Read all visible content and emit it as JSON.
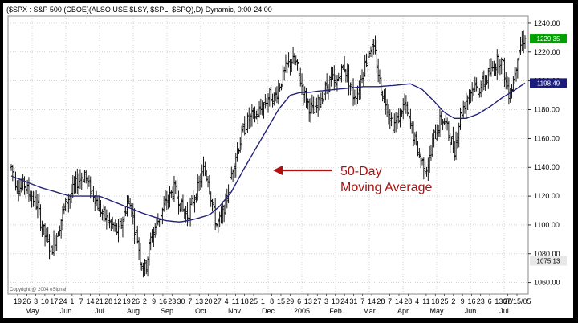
{
  "chart_data": {
    "type": "ohlc_bar",
    "header": "($SPX : S&P 500 (CBOE)(ALSO USE $LSY, $SPL, $SPQ),D) Dynamic, 0:00-24:00",
    "copyright": "Copyright @ 2004 eSignal",
    "ylim": [
      1052,
      1245
    ],
    "y_ticks": [
      1060,
      1080,
      1100,
      1120,
      1140,
      1160,
      1180,
      1200,
      1220,
      1240
    ],
    "tagged_values": [
      {
        "label": "1229.35",
        "value": 1229.35,
        "color": "#00a000",
        "text_color": "#ffffff"
      },
      {
        "label": "1198.49",
        "value": 1198.49,
        "color": "#1a1a7a",
        "text_color": "#ffffff"
      },
      {
        "label": "1075.13",
        "value": 1075.13,
        "color": "#e8e8e8",
        "text_color": "#000000"
      }
    ],
    "date_labels": [
      "19",
      "26",
      "3",
      "10",
      "17",
      "24",
      "1",
      "7",
      "14",
      "21",
      "28",
      "12",
      "19",
      "26",
      "2",
      "9",
      "16",
      "23",
      "30",
      "7",
      "13",
      "20",
      "27",
      "4",
      "11",
      "18",
      "25",
      "1",
      "8",
      "15",
      "29",
      "6",
      "13",
      "27",
      "3",
      "10",
      "24",
      "31",
      "7",
      "14",
      "28",
      "7",
      "14",
      "28",
      "4",
      "11",
      "18",
      "25",
      "2",
      "9",
      "16",
      "23",
      "6",
      "13",
      "20",
      "07/15/05"
    ],
    "month_labels": [
      "May",
      "Jun",
      "Jul",
      "Aug",
      "Sep",
      "Oct",
      "Nov",
      "Dec",
      "2005",
      "Feb",
      "Mar",
      "Apr",
      "May",
      "Jun",
      "Jul"
    ],
    "price_path": [
      [
        0,
        1140
      ],
      [
        3,
        1130
      ],
      [
        6,
        1126
      ],
      [
        9,
        1128
      ],
      [
        12,
        1122
      ],
      [
        15,
        1118
      ],
      [
        18,
        1113
      ],
      [
        21,
        1098
      ],
      [
        24,
        1090
      ],
      [
        27,
        1082
      ],
      [
        30,
        1090
      ],
      [
        33,
        1100
      ],
      [
        35,
        1108
      ],
      [
        38,
        1117
      ],
      [
        41,
        1122
      ],
      [
        44,
        1128
      ],
      [
        47,
        1133
      ],
      [
        50,
        1135
      ],
      [
        53,
        1126
      ],
      [
        56,
        1122
      ],
      [
        59,
        1114
      ],
      [
        62,
        1108
      ],
      [
        66,
        1103
      ],
      [
        70,
        1098
      ],
      [
        73,
        1095
      ],
      [
        76,
        1104
      ],
      [
        79,
        1116
      ],
      [
        82,
        1112
      ],
      [
        84,
        1098
      ],
      [
        86,
        1090
      ],
      [
        88,
        1077
      ],
      [
        90,
        1070
      ],
      [
        92,
        1072
      ],
      [
        95,
        1090
      ],
      [
        98,
        1098
      ],
      [
        102,
        1108
      ],
      [
        105,
        1115
      ],
      [
        108,
        1120
      ],
      [
        111,
        1125
      ],
      [
        114,
        1118
      ],
      [
        117,
        1110
      ],
      [
        120,
        1106
      ],
      [
        122,
        1112
      ],
      [
        125,
        1120
      ],
      [
        128,
        1128
      ],
      [
        131,
        1138
      ],
      [
        134,
        1133
      ],
      [
        136,
        1120
      ],
      [
        138,
        1108
      ],
      [
        140,
        1100
      ],
      [
        143,
        1104
      ],
      [
        146,
        1115
      ],
      [
        149,
        1130
      ],
      [
        152,
        1145
      ],
      [
        155,
        1155
      ],
      [
        158,
        1165
      ],
      [
        161,
        1172
      ],
      [
        164,
        1175
      ],
      [
        167,
        1176
      ],
      [
        170,
        1180
      ],
      [
        173,
        1185
      ],
      [
        176,
        1190
      ],
      [
        179,
        1188
      ],
      [
        182,
        1195
      ],
      [
        185,
        1203
      ],
      [
        188,
        1210
      ],
      [
        191,
        1214
      ],
      [
        194,
        1212
      ],
      [
        197,
        1200
      ],
      [
        200,
        1190
      ],
      [
        203,
        1182
      ],
      [
        206,
        1178
      ],
      [
        209,
        1184
      ],
      [
        212,
        1190
      ],
      [
        215,
        1196
      ],
      [
        218,
        1202
      ],
      [
        221,
        1196
      ],
      [
        224,
        1206
      ],
      [
        227,
        1210
      ],
      [
        230,
        1200
      ],
      [
        233,
        1190
      ],
      [
        236,
        1192
      ],
      [
        239,
        1205
      ],
      [
        242,
        1215
      ],
      [
        245,
        1224
      ],
      [
        248,
        1218
      ],
      [
        250,
        1205
      ],
      [
        252,
        1194
      ],
      [
        255,
        1186
      ],
      [
        258,
        1176
      ],
      [
        260,
        1170
      ],
      [
        263,
        1172
      ],
      [
        266,
        1180
      ],
      [
        268,
        1184
      ],
      [
        270,
        1176
      ],
      [
        273,
        1166
      ],
      [
        276,
        1155
      ],
      [
        279,
        1145
      ],
      [
        282,
        1140
      ],
      [
        284,
        1142
      ],
      [
        286,
        1150
      ],
      [
        288,
        1162
      ],
      [
        290,
        1166
      ],
      [
        293,
        1174
      ],
      [
        296,
        1170
      ],
      [
        299,
        1160
      ],
      [
        302,
        1152
      ],
      [
        304,
        1165
      ],
      [
        306,
        1176
      ],
      [
        309,
        1184
      ],
      [
        312,
        1192
      ],
      [
        315,
        1196
      ],
      [
        318,
        1194
      ],
      [
        321,
        1198
      ],
      [
        324,
        1202
      ],
      [
        327,
        1207
      ],
      [
        330,
        1212
      ],
      [
        333,
        1215
      ],
      [
        335,
        1210
      ],
      [
        337,
        1199
      ],
      [
        339,
        1192
      ],
      [
        341,
        1196
      ],
      [
        343,
        1206
      ],
      [
        345,
        1218
      ],
      [
        347,
        1225
      ],
      [
        349,
        1229
      ],
      [
        350,
        1229.35
      ]
    ],
    "moving_average_50": [
      [
        0,
        1134
      ],
      [
        20,
        1126
      ],
      [
        40,
        1120
      ],
      [
        60,
        1120
      ],
      [
        75,
        1114
      ],
      [
        90,
        1108
      ],
      [
        105,
        1103
      ],
      [
        115,
        1102
      ],
      [
        125,
        1104
      ],
      [
        135,
        1107
      ],
      [
        142,
        1113
      ],
      [
        150,
        1123
      ],
      [
        158,
        1138
      ],
      [
        166,
        1152
      ],
      [
        174,
        1166
      ],
      [
        182,
        1180
      ],
      [
        190,
        1190
      ],
      [
        197,
        1192
      ],
      [
        203,
        1192
      ],
      [
        210,
        1193
      ],
      [
        220,
        1194
      ],
      [
        230,
        1195
      ],
      [
        240,
        1196
      ],
      [
        250,
        1196
      ],
      [
        262,
        1197
      ],
      [
        272,
        1198
      ],
      [
        280,
        1194
      ],
      [
        288,
        1186
      ],
      [
        295,
        1178
      ],
      [
        302,
        1174
      ],
      [
        310,
        1174
      ],
      [
        318,
        1177
      ],
      [
        326,
        1182
      ],
      [
        334,
        1188
      ],
      [
        342,
        1193
      ],
      [
        350,
        1198.49
      ]
    ],
    "annotation": {
      "line1": "50-Day",
      "line2": "Moving Average"
    },
    "colors": {
      "bars": "#000000",
      "moving_average": "#23237a",
      "grid": "#b8b8b8",
      "arrow": "#b01010"
    },
    "grid": true
  }
}
